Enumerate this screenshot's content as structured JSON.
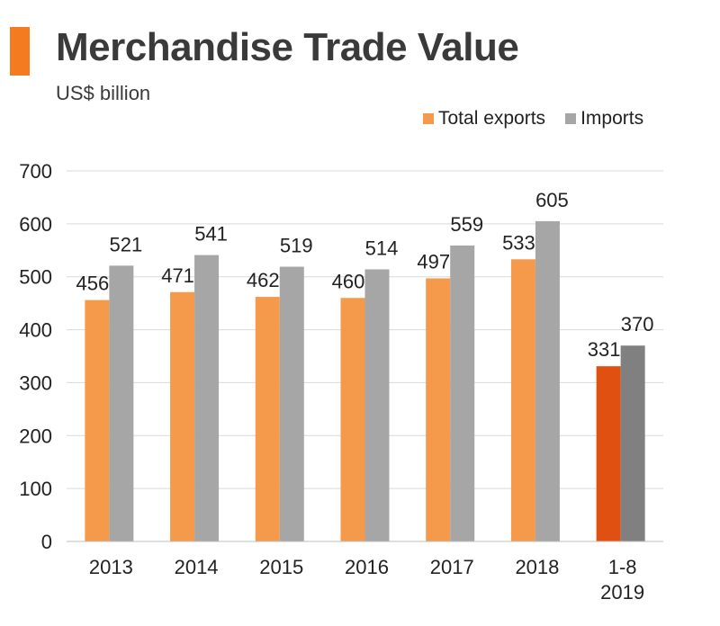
{
  "header": {
    "title": "Merchandise Trade Value",
    "subtitle": "US$ billion"
  },
  "colors": {
    "accent": "#F47B20",
    "exports": "#F5994B",
    "imports": "#A6A6A6",
    "exports_highlight": "#E05010",
    "imports_highlight": "#808080",
    "grid": "#D9D9D9"
  },
  "chart_data": {
    "type": "bar",
    "title": "Merchandise Trade Value",
    "subtitle": "US$ billion",
    "xlabel": "",
    "ylabel": "",
    "ylim": [
      0,
      700
    ],
    "yticks": [
      0,
      100,
      200,
      300,
      400,
      500,
      600,
      700
    ],
    "categories": [
      "2013",
      "2014",
      "2015",
      "2016",
      "2017",
      "2018",
      [
        "1-8",
        "2019"
      ]
    ],
    "series": [
      {
        "name": "Total exports",
        "values": [
          456,
          471,
          462,
          460,
          497,
          533,
          331
        ]
      },
      {
        "name": "Imports",
        "values": [
          521,
          541,
          519,
          514,
          559,
          605,
          370
        ]
      }
    ],
    "highlight_index": 6,
    "legend": "top-right",
    "grid": true
  }
}
